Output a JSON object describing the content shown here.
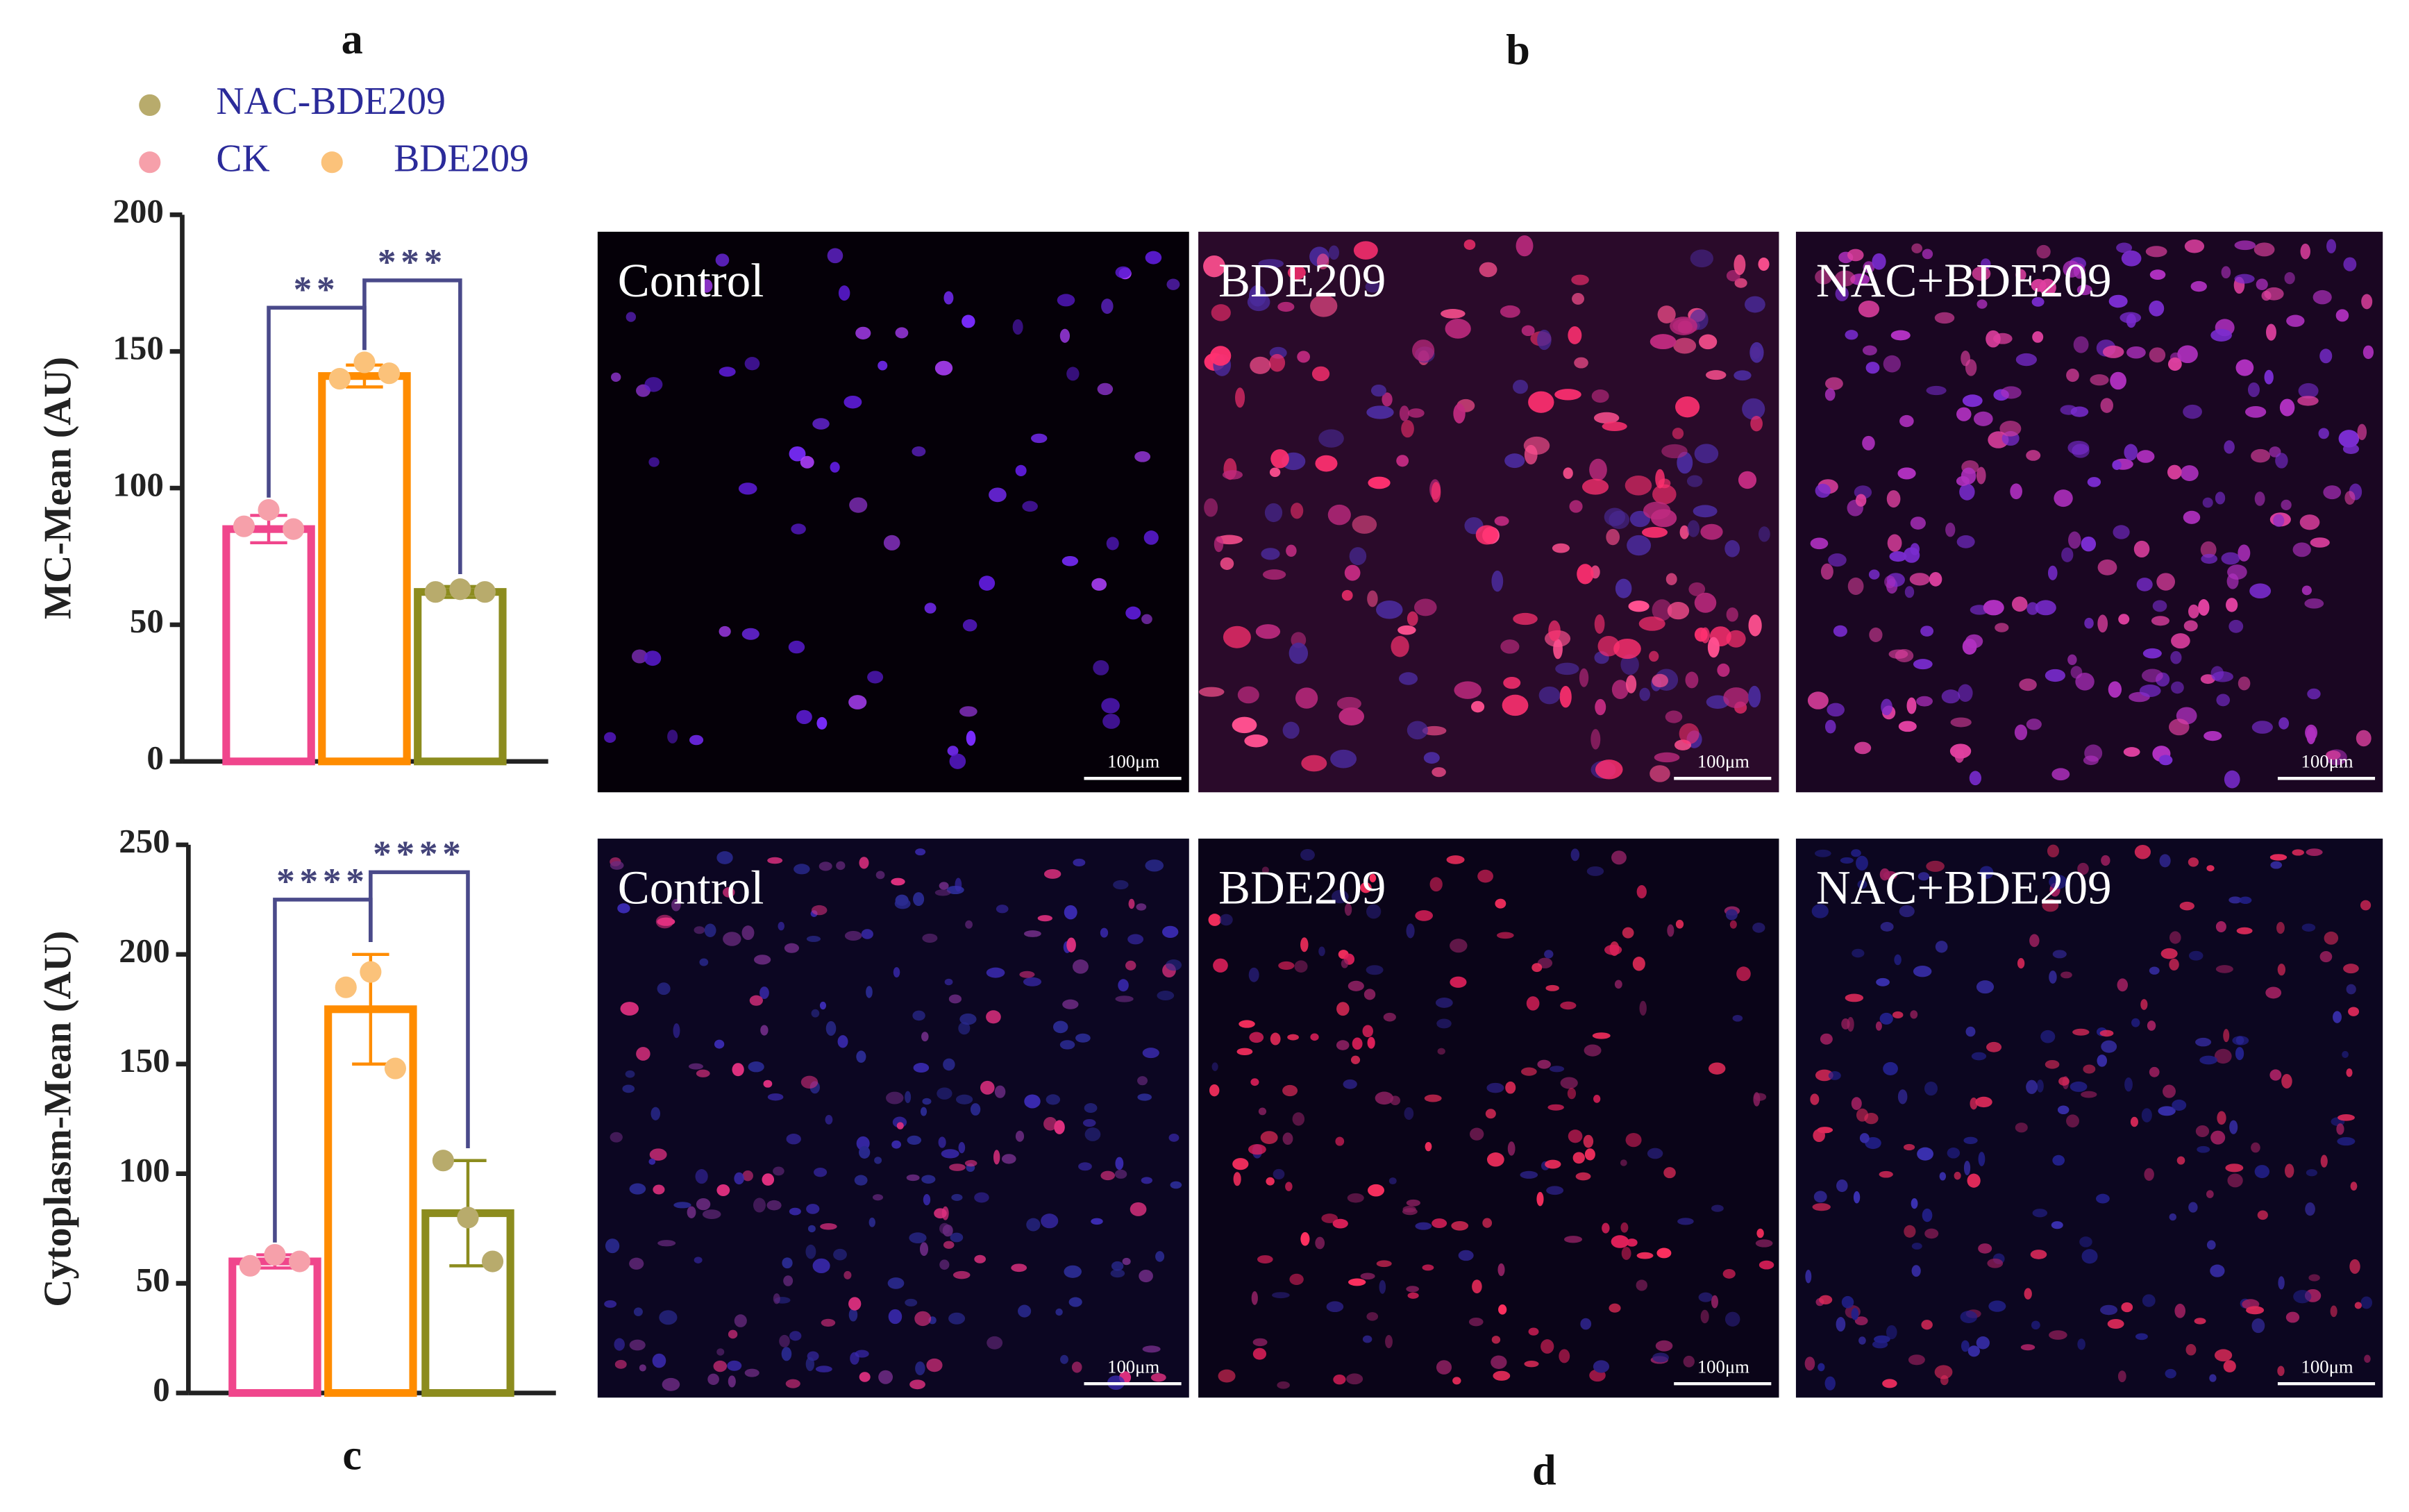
{
  "chart_data": [
    {
      "type": "bar",
      "panel": "a",
      "ylabel": "MC-Mean (AU)",
      "ylim": [
        0,
        200
      ],
      "yticks": [
        0,
        50,
        100,
        150,
        200
      ],
      "series": [
        {
          "name": "CK",
          "color": "#f0468c",
          "marker_color": "#f6a0aa",
          "values": [
            85
          ],
          "errors": [
            5
          ],
          "points": [
            86,
            92,
            85
          ]
        },
        {
          "name": "BDE209",
          "color": "#ff8c00",
          "marker_color": "#fbc27a",
          "values": [
            141
          ],
          "errors": [
            4
          ],
          "points": [
            140,
            146,
            142
          ]
        },
        {
          "name": "NAC-BDE209",
          "color": "#8c8c1e",
          "marker_color": "#b8ab6c",
          "values": [
            62
          ],
          "errors": [
            2
          ],
          "points": [
            62,
            63,
            62
          ]
        }
      ],
      "annotations": [
        "**",
        "***"
      ]
    },
    {
      "type": "bar",
      "panel": "c",
      "ylabel": "Cytoplasm-Mean (AU)",
      "ylim": [
        0,
        250
      ],
      "yticks": [
        0,
        50,
        100,
        150,
        200,
        250
      ],
      "series": [
        {
          "color": "#f0468c",
          "marker_color": "#f6a0aa",
          "values": [
            60
          ],
          "errors": [
            3
          ],
          "points": [
            58,
            63,
            60
          ]
        },
        {
          "color": "#ff8c00",
          "marker_color": "#fbc27a",
          "values": [
            175
          ],
          "errors": [
            25
          ],
          "points": [
            185,
            192,
            148
          ]
        },
        {
          "color": "#8c8c1e",
          "marker_color": "#b8ab6c",
          "values": [
            82
          ],
          "errors": [
            24
          ],
          "points": [
            106,
            80,
            60
          ]
        }
      ],
      "annotations": [
        "****",
        "****"
      ]
    }
  ],
  "image_panels": [
    {
      "letter": "b",
      "images": [
        {
          "label": "Control",
          "scale": "100μm"
        },
        {
          "label": "BDE209",
          "scale": "100μm"
        },
        {
          "label": "NAC+BDE209",
          "scale": "100μm"
        }
      ]
    },
    {
      "letter": "d",
      "images": [
        {
          "label": "Control",
          "scale": "100μm"
        },
        {
          "label": "BDE209",
          "scale": "100μm"
        },
        {
          "label": "NAC+BDE209",
          "scale": "100μm"
        }
      ]
    }
  ]
}
